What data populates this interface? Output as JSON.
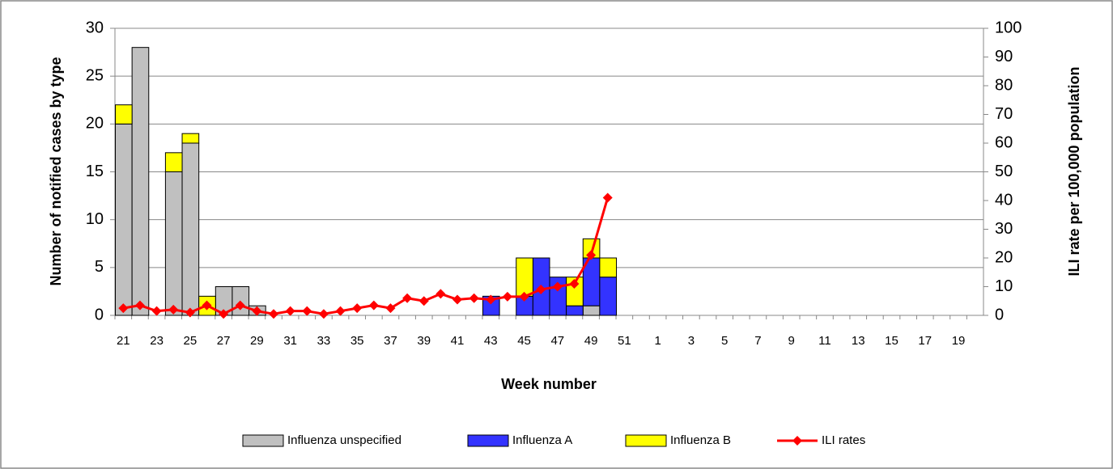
{
  "chart_data": {
    "type": "bar",
    "stacked": true,
    "categories": [
      "21",
      null,
      "23",
      null,
      "25",
      null,
      "27",
      null,
      "29",
      null,
      "31",
      null,
      "33",
      null,
      "35",
      null,
      "37",
      null,
      "39",
      null,
      "41",
      null,
      "43",
      null,
      "45",
      null,
      "47",
      null,
      "49",
      null,
      "51",
      null,
      "1",
      null,
      "3",
      null,
      "5",
      null,
      "7",
      null,
      "9",
      null,
      "11",
      null,
      "13",
      null,
      "15",
      null,
      "17",
      null,
      "19",
      null
    ],
    "x_label": "Week number",
    "y_label": "Number of notified cases by type",
    "y2_label": "ILI rate per 100,000 population",
    "ylim": [
      0,
      30
    ],
    "yticks": [
      0,
      5,
      10,
      15,
      20,
      25,
      30
    ],
    "y2lim": [
      0,
      100
    ],
    "y2ticks": [
      0,
      10,
      20,
      30,
      40,
      50,
      60,
      70,
      80,
      90,
      100
    ],
    "grid": true,
    "legend": "bottom",
    "series": [
      {
        "name": "Influenza unspecified",
        "color": "#c0c0c0",
        "values": [
          20,
          28,
          null,
          15,
          18,
          null,
          3,
          3,
          1,
          null,
          null,
          null,
          null,
          null,
          null,
          null,
          null,
          null,
          null,
          null,
          null,
          null,
          null,
          null,
          null,
          null,
          null,
          null,
          1,
          null,
          null,
          null,
          null,
          null,
          null,
          null,
          null,
          null,
          null,
          null,
          null,
          null,
          null,
          null,
          null,
          null,
          null,
          null,
          null,
          null,
          null,
          null
        ]
      },
      {
        "name": "Influenza A",
        "color": "#3333ff",
        "values": [
          null,
          null,
          null,
          null,
          null,
          null,
          null,
          null,
          null,
          null,
          null,
          null,
          null,
          null,
          null,
          null,
          null,
          null,
          null,
          null,
          null,
          null,
          2,
          null,
          2,
          6,
          4,
          1,
          5,
          4,
          null,
          null,
          null,
          null,
          null,
          null,
          null,
          null,
          null,
          null,
          null,
          null,
          null,
          null,
          null,
          null,
          null,
          null,
          null,
          null,
          null,
          null
        ]
      },
      {
        "name": "Influenza B",
        "color": "#ffff00",
        "values": [
          2,
          null,
          null,
          2,
          1,
          2,
          null,
          null,
          null,
          null,
          null,
          null,
          null,
          null,
          null,
          null,
          null,
          null,
          null,
          null,
          null,
          null,
          null,
          null,
          4,
          null,
          null,
          3,
          2,
          2,
          null,
          null,
          null,
          null,
          null,
          null,
          null,
          null,
          null,
          null,
          null,
          null,
          null,
          null,
          null,
          null,
          null,
          null,
          null,
          null,
          null,
          null
        ]
      },
      {
        "name": "ILI rates",
        "type": "line",
        "axis": "y2",
        "color": "#ff0000",
        "values": [
          2.5,
          3.5,
          1.5,
          2,
          1,
          3.5,
          0.5,
          3.5,
          1.5,
          0.5,
          1.5,
          1.5,
          0.5,
          1.5,
          2.5,
          3.5,
          2.5,
          6,
          5,
          7.5,
          5.5,
          6,
          5.5,
          6.5,
          6.5,
          9,
          10,
          11,
          21,
          41,
          null,
          null,
          null,
          null,
          null,
          null,
          null,
          null,
          null,
          null,
          null,
          null,
          null,
          null,
          null,
          null,
          null,
          null,
          null,
          null,
          null,
          null
        ]
      }
    ]
  }
}
